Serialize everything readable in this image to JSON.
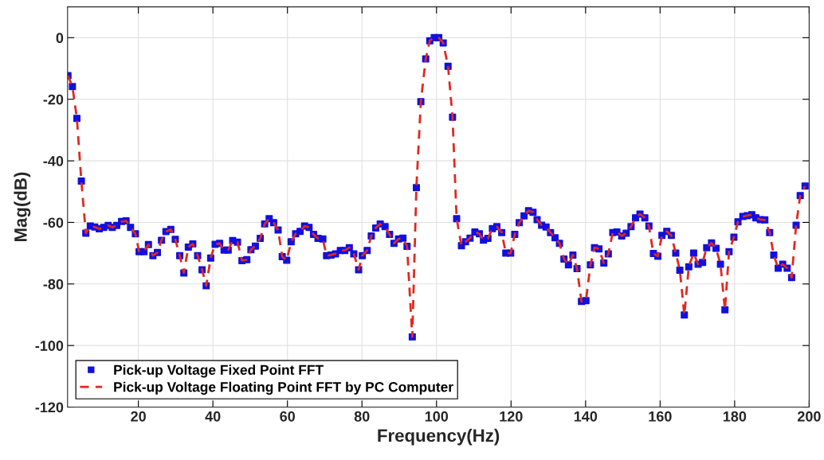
{
  "chart_data": {
    "type": "line",
    "xlabel": "Frequency(Hz)",
    "ylabel": "Mag(dB)",
    "x": [
      1.1,
      2.3,
      3.5,
      4.7,
      5.9,
      7.1,
      8.3,
      9.5,
      10.7,
      11.9,
      13.0,
      14.2,
      15.5,
      16.7,
      17.9,
      19.2,
      20.2,
      21.5,
      22.7,
      23.9,
      25.1,
      26.2,
      27.4,
      28.7,
      29.9,
      31.1,
      32.2,
      33.4,
      34.6,
      35.9,
      37.1,
      38.2,
      39.4,
      40.6,
      41.8,
      43.0,
      44.1,
      45.3,
      46.6,
      47.8,
      49.1,
      50.2,
      51.4,
      52.7,
      53.9,
      55.1,
      56.3,
      57.5,
      58.6,
      59.8,
      61.0,
      62.2,
      63.4,
      64.6,
      65.8,
      67.0,
      68.2,
      69.5,
      70.5,
      71.7,
      72.9,
      74.2,
      75.4,
      76.6,
      77.8,
      79.1,
      80.1,
      81.4,
      82.5,
      83.7,
      84.9,
      86.2,
      87.4,
      88.6,
      89.8,
      91.0,
      92.1,
      93.5,
      94.6,
      95.8,
      97.1,
      98.2,
      99.4,
      100.6,
      101.8,
      103.1,
      104.3,
      105.4,
      106.7,
      107.8,
      109.0,
      110.3,
      111.5,
      112.6,
      113.8,
      115.0,
      116.2,
      117.5,
      118.6,
      119.9,
      121.0,
      122.2,
      123.5,
      124.7,
      125.9,
      127.0,
      128.2,
      129.4,
      130.6,
      131.8,
      133.0,
      134.2,
      135.4,
      136.6,
      137.7,
      138.9,
      140.1,
      141.3,
      142.4,
      143.6,
      144.9,
      146.1,
      147.3,
      148.4,
      149.7,
      150.9,
      152.2,
      153.4,
      154.6,
      155.9,
      157.0,
      158.2,
      159.4,
      160.5,
      161.8,
      163.0,
      164.2,
      165.3,
      166.5,
      167.7,
      169.0,
      170.2,
      171.4,
      172.5,
      173.8,
      175.0,
      176.2,
      177.4,
      178.5,
      179.8,
      180.9,
      182.2,
      183.4,
      184.6,
      185.7,
      186.9,
      188.1,
      189.4,
      190.5,
      191.7,
      192.9,
      194.1,
      195.3,
      196.5,
      197.6,
      198.9
    ],
    "series": [
      {
        "name": "Pick-up Voltage Fixed Point FFT",
        "type": "scatter",
        "marker": "square",
        "color": "#1010e0",
        "values": [
          -12.3,
          -15.9,
          -26.2,
          -46.6,
          -63.5,
          -61.2,
          -61.5,
          -62.1,
          -61.6,
          -61.0,
          -61.6,
          -61.0,
          -59.7,
          -59.5,
          -61.6,
          -63.7,
          -69.5,
          -69.5,
          -67.2,
          -70.8,
          -69.8,
          -65.8,
          -63.0,
          -62.3,
          -65.5,
          -70.8,
          -76.4,
          -68.0,
          -67.0,
          -70.8,
          -75.4,
          -80.6,
          -71.6,
          -67.1,
          -66.8,
          -69.0,
          -69.0,
          -65.9,
          -66.4,
          -72.4,
          -72.1,
          -68.9,
          -67.7,
          -65.2,
          -60.5,
          -58.8,
          -60.1,
          -62.5,
          -71.1,
          -72.3,
          -66.3,
          -63.7,
          -62.9,
          -61.2,
          -61.6,
          -63.9,
          -65.2,
          -65.4,
          -70.8,
          -70.6,
          -70.2,
          -69.1,
          -69.1,
          -68.2,
          -70.2,
          -75.4,
          -70.8,
          -69.1,
          -64.4,
          -61.8,
          -60.5,
          -61.4,
          -63.9,
          -66.8,
          -65.4,
          -65.1,
          -67.8,
          -97.2,
          -48.7,
          -20.8,
          -6.9,
          -1.0,
          0.0,
          0.0,
          -1.7,
          -9.3,
          -25.8,
          -58.8,
          -67.6,
          -66.3,
          -65.1,
          -63.1,
          -63.7,
          -65.8,
          -65.2,
          -62.0,
          -61.4,
          -63.3,
          -70.0,
          -70.0,
          -63.9,
          -60.1,
          -57.9,
          -56.2,
          -56.7,
          -59.1,
          -60.9,
          -61.5,
          -63.3,
          -65.0,
          -66.8,
          -71.9,
          -73.8,
          -70.6,
          -75.0,
          -85.7,
          -85.4,
          -73.8,
          -68.2,
          -68.6,
          -73.2,
          -70.2,
          -63.3,
          -63.1,
          -64.4,
          -63.5,
          -61.4,
          -58.5,
          -57.3,
          -58.5,
          -61.2,
          -70.1,
          -71.0,
          -64.2,
          -62.9,
          -64.2,
          -70.0,
          -75.5,
          -90.1,
          -74.4,
          -70.0,
          -73.6,
          -73.0,
          -68.2,
          -66.7,
          -68.4,
          -73.6,
          -88.4,
          -69.5,
          -64.8,
          -59.8,
          -58.1,
          -57.8,
          -57.5,
          -58.5,
          -59.1,
          -59.2,
          -63.3,
          -70.6,
          -74.9,
          -73.6,
          -74.9,
          -77.9,
          -60.9,
          -51.3,
          -48.2
        ]
      },
      {
        "name": "Pick-up Voltage Floating Point FFT by PC Computer",
        "line_style": "dashed",
        "color": "#e0281e",
        "values": [
          -12.3,
          -15.9,
          -26.2,
          -46.6,
          -63.5,
          -61.2,
          -61.5,
          -62.1,
          -61.6,
          -61.0,
          -61.6,
          -61.0,
          -59.7,
          -59.5,
          -61.6,
          -63.7,
          -69.5,
          -69.5,
          -67.2,
          -70.8,
          -69.8,
          -65.8,
          -63.0,
          -62.3,
          -65.5,
          -70.8,
          -76.4,
          -68.0,
          -67.0,
          -70.8,
          -75.4,
          -80.6,
          -71.6,
          -67.1,
          -66.8,
          -69.0,
          -69.0,
          -65.9,
          -66.4,
          -72.4,
          -72.1,
          -68.9,
          -67.7,
          -65.2,
          -60.5,
          -58.8,
          -60.1,
          -62.5,
          -71.1,
          -72.3,
          -66.3,
          -63.7,
          -62.9,
          -61.2,
          -61.6,
          -63.9,
          -65.2,
          -65.4,
          -70.8,
          -70.6,
          -70.2,
          -69.1,
          -69.1,
          -68.2,
          -70.2,
          -75.4,
          -70.8,
          -69.1,
          -64.4,
          -61.8,
          -60.5,
          -61.4,
          -63.9,
          -66.8,
          -65.4,
          -65.1,
          -67.8,
          -97.2,
          -48.7,
          -20.8,
          -6.9,
          -1.0,
          0.0,
          0.0,
          -1.7,
          -9.3,
          -25.8,
          -58.8,
          -67.6,
          -66.3,
          -65.1,
          -63.1,
          -63.7,
          -65.8,
          -65.2,
          -62.0,
          -61.4,
          -63.3,
          -70.0,
          -70.0,
          -63.9,
          -60.1,
          -57.9,
          -56.2,
          -56.7,
          -59.1,
          -60.9,
          -61.5,
          -63.3,
          -65.0,
          -66.8,
          -71.9,
          -73.8,
          -70.6,
          -75.0,
          -85.7,
          -85.4,
          -73.8,
          -68.2,
          -68.6,
          -73.2,
          -70.2,
          -63.3,
          -63.1,
          -64.4,
          -63.5,
          -61.4,
          -58.5,
          -57.3,
          -58.5,
          -61.2,
          -70.1,
          -71.0,
          -64.2,
          -62.9,
          -64.2,
          -70.0,
          -75.5,
          -90.1,
          -74.4,
          -70.0,
          -73.6,
          -73.0,
          -68.2,
          -66.7,
          -68.4,
          -73.6,
          -88.4,
          -69.5,
          -64.8,
          -59.8,
          -58.1,
          -57.8,
          -57.5,
          -58.5,
          -59.1,
          -59.2,
          -63.3,
          -70.6,
          -74.9,
          -73.6,
          -74.9,
          -77.9,
          -60.9,
          -51.3,
          -48.2
        ]
      }
    ],
    "xlim": [
      1,
      200
    ],
    "xticks": [
      20,
      40,
      60,
      80,
      100,
      120,
      140,
      160,
      180,
      200
    ],
    "ylim": [
      -120,
      10
    ],
    "yticks": [
      -120,
      -100,
      -80,
      -60,
      -40,
      -20,
      0
    ],
    "grid": true,
    "legend": "bottom left"
  }
}
